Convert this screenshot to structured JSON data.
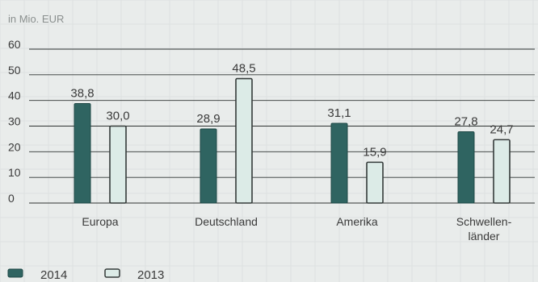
{
  "chart_data": {
    "type": "bar",
    "unit_label": "in Mio. EUR",
    "categories": [
      "Europa",
      "Deutschland",
      "Amerika",
      [
        "Schwellen-",
        "länder"
      ]
    ],
    "series": [
      {
        "name": "2014",
        "values": [
          38.8,
          28.9,
          31.1,
          27.8
        ],
        "labels": [
          "38,8",
          "28,9",
          "31,1",
          "27,8"
        ],
        "color": "#2f6461"
      },
      {
        "name": "2013",
        "values": [
          30.0,
          48.5,
          15.9,
          24.7
        ],
        "labels": [
          "30,0",
          "48,5",
          "15,9",
          "24,7"
        ],
        "color": "#dcebe7"
      }
    ],
    "ylim": [
      0,
      60
    ],
    "yticks": [
      0,
      10,
      20,
      30,
      40,
      50,
      60
    ],
    "grid": true,
    "legend_position": "bottom-left"
  }
}
